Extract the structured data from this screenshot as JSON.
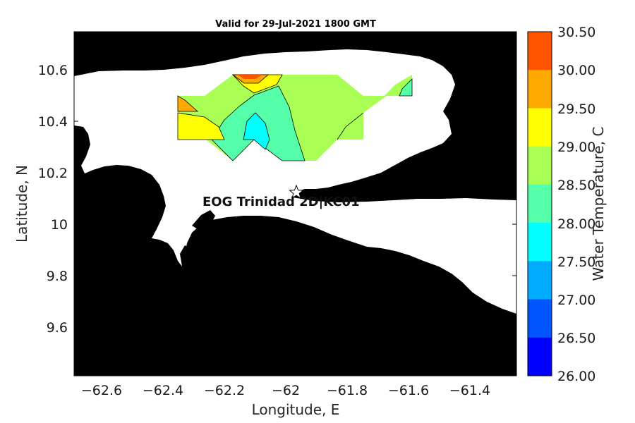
{
  "title": "Valid for 29-Jul-2021 1800 GMT",
  "x_axis": {
    "label": "Longitude, E",
    "ticks": [
      "−62.6",
      "−62.4",
      "−62.2",
      "−62",
      "−61.8",
      "−61.6",
      "−61.4"
    ]
  },
  "y_axis": {
    "label": "Latitude, N",
    "ticks": [
      "10.6",
      "10.4",
      "10.2",
      "10",
      "9.8",
      "9.6"
    ]
  },
  "colorbar": {
    "label": "Water Temperature, C",
    "ticks": [
      "30.50",
      "30.00",
      "29.50",
      "29.00",
      "28.50",
      "28.00",
      "27.50",
      "27.00",
      "26.50",
      "26.00"
    ],
    "colors": [
      "#ff5500",
      "#ffaa00",
      "#ffff00",
      "#aaff55",
      "#55ffaa",
      "#00ffff",
      "#00aaff",
      "#0055ff",
      "#0000ff"
    ]
  },
  "station": {
    "label": "EOG Trinidad 2D|KC01",
    "marker": "star-icon",
    "lon": -61.97,
    "lat": 10.13
  },
  "colors": {
    "land": "#000000",
    "water": "#ffffff"
  }
}
